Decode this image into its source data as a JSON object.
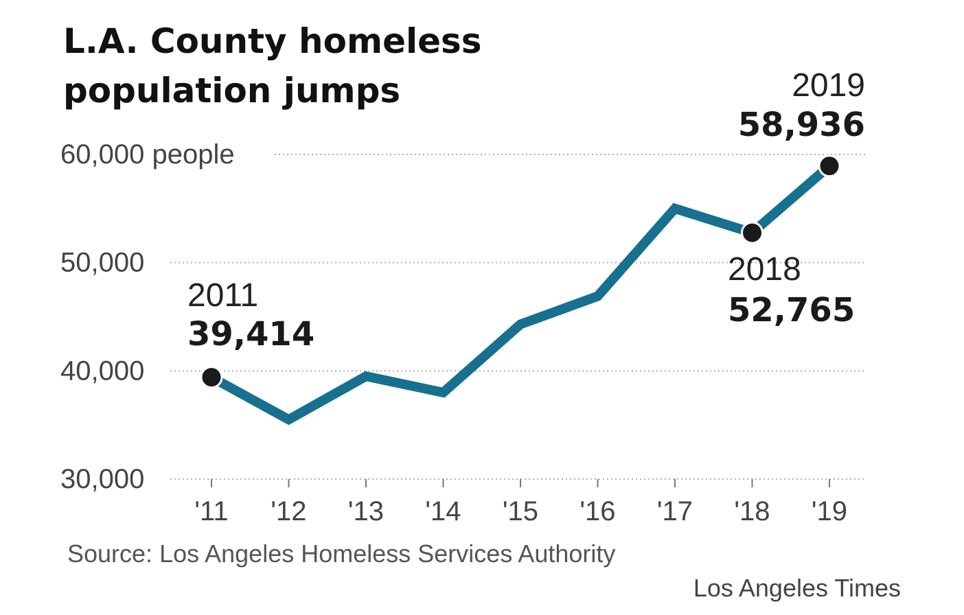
{
  "title_lines": [
    "L.A. County homeless",
    "population jumps"
  ],
  "source": "Source: Los Angeles Homeless Services Authority",
  "credit": "Los Angeles Times",
  "colors": {
    "line": "#17708f",
    "marker": "#1a1a1a",
    "grid": "#b0b0b0",
    "axis_text": "#444444",
    "label_text": "#222222"
  },
  "chart_data": {
    "type": "line",
    "title": "L.A. County homeless population jumps",
    "x": [
      2011,
      2012,
      2013,
      2014,
      2015,
      2016,
      2017,
      2018,
      2019
    ],
    "categories": [
      "'11",
      "'12",
      "'13",
      "'14",
      "'15",
      "'16",
      "'17",
      "'18",
      "'19"
    ],
    "series": [
      {
        "values": [
          39414,
          35500,
          39500,
          38000,
          44300,
          46900,
          55000,
          52765,
          58936
        ]
      }
    ],
    "ylim": [
      30000,
      60000
    ],
    "y_ticks": [
      30000,
      40000,
      50000,
      60000
    ],
    "y_tick_labels": [
      "30,000",
      "40,000",
      "50,000",
      "60,000 people"
    ],
    "grid": true,
    "legend": "none",
    "annotations": [
      {
        "year": "2011",
        "value": "39,414",
        "index": 0
      },
      {
        "year": "2018",
        "value": "52,765",
        "index": 7
      },
      {
        "year": "2019",
        "value": "58,936",
        "index": 8
      }
    ],
    "highlighted_points": [
      0,
      7,
      8
    ]
  }
}
